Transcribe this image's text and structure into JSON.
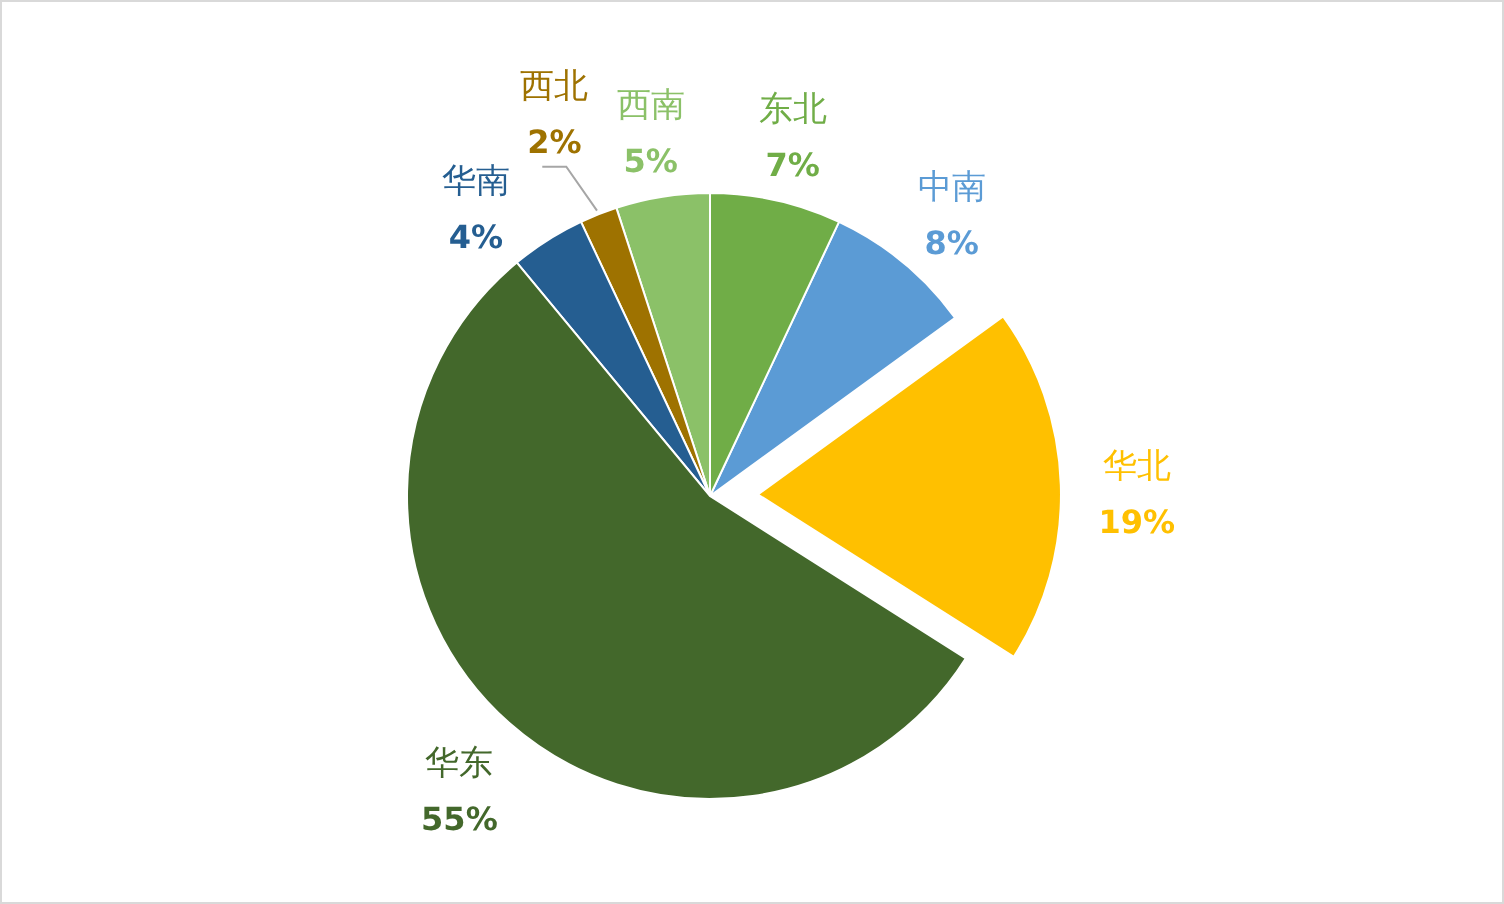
{
  "chart_data": {
    "type": "pie",
    "categories": [
      "东北",
      "中南",
      "华北",
      "华东",
      "华南",
      "西北",
      "西南"
    ],
    "values": [
      7,
      8,
      19,
      55,
      4,
      2,
      5
    ],
    "colors": [
      "#70ad47",
      "#5b9bd5",
      "#ffc000",
      "#43682b",
      "#255e91",
      "#9e7200",
      "#8bc168"
    ],
    "value_labels": [
      "7%",
      "8%",
      "19%",
      "55%",
      "4%",
      "2%",
      "5%"
    ]
  }
}
